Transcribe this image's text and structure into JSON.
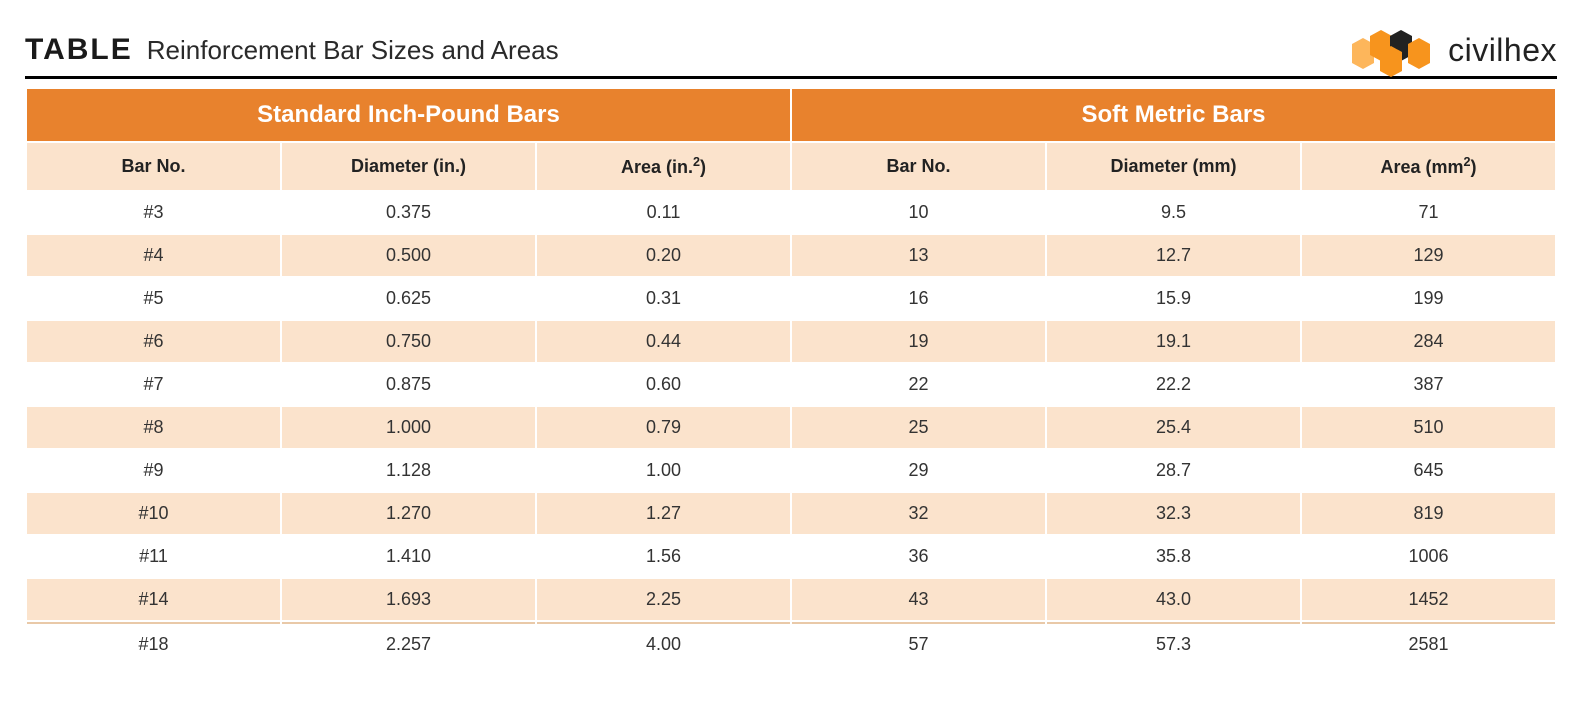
{
  "title": {
    "label": "TABLE",
    "subtitle": "Reinforcement Bar Sizes and Areas"
  },
  "brand": {
    "name": "civilhex",
    "hex_colors": {
      "light": "#fdb65b",
      "orange": "#f7941d",
      "dark": "#222222"
    }
  },
  "table": {
    "header_bg": "#e8822d",
    "header_fg": "#ffffff",
    "subheader_bg": "#fbe3cc",
    "row_alt_bg": "#fbe3cc",
    "row_bg": "#ffffff",
    "border_rule": "#000000",
    "groups": [
      {
        "label": "Standard Inch-Pound Bars",
        "span": 3
      },
      {
        "label": "Soft Metric Bars",
        "span": 3
      }
    ],
    "columns": [
      {
        "label": "Bar No.",
        "width": "10%"
      },
      {
        "label_html": "Diameter (in.)",
        "width": "18%"
      },
      {
        "label_html": "Area (in.<sup>2</sup>)",
        "width": "18%"
      },
      {
        "label": "Bar No.",
        "width": "14%"
      },
      {
        "label": "Diameter (mm)",
        "width": "20%"
      },
      {
        "label_html": "Area (mm<sup>2</sup>)",
        "width": "20%"
      }
    ],
    "rows": [
      [
        "#3",
        "0.375",
        "0.11",
        "10",
        "9.5",
        "71"
      ],
      [
        "#4",
        "0.500",
        "0.20",
        "13",
        "12.7",
        "129"
      ],
      [
        "#5",
        "0.625",
        "0.31",
        "16",
        "15.9",
        "199"
      ],
      [
        "#6",
        "0.750",
        "0.44",
        "19",
        "19.1",
        "284"
      ],
      [
        "#7",
        "0.875",
        "0.60",
        "22",
        "22.2",
        "387"
      ],
      [
        "#8",
        "1.000",
        "0.79",
        "25",
        "25.4",
        "510"
      ],
      [
        "#9",
        "1.128",
        "1.00",
        "29",
        "28.7",
        "645"
      ],
      [
        "#10",
        "1.270",
        "1.27",
        "32",
        "32.3",
        "819"
      ],
      [
        "#11",
        "1.410",
        "1.56",
        "36",
        "35.8",
        "1006"
      ],
      [
        "#14",
        "1.693",
        "2.25",
        "43",
        "43.0",
        "1452"
      ],
      [
        "#18",
        "2.257",
        "4.00",
        "57",
        "57.3",
        "2581"
      ]
    ]
  }
}
